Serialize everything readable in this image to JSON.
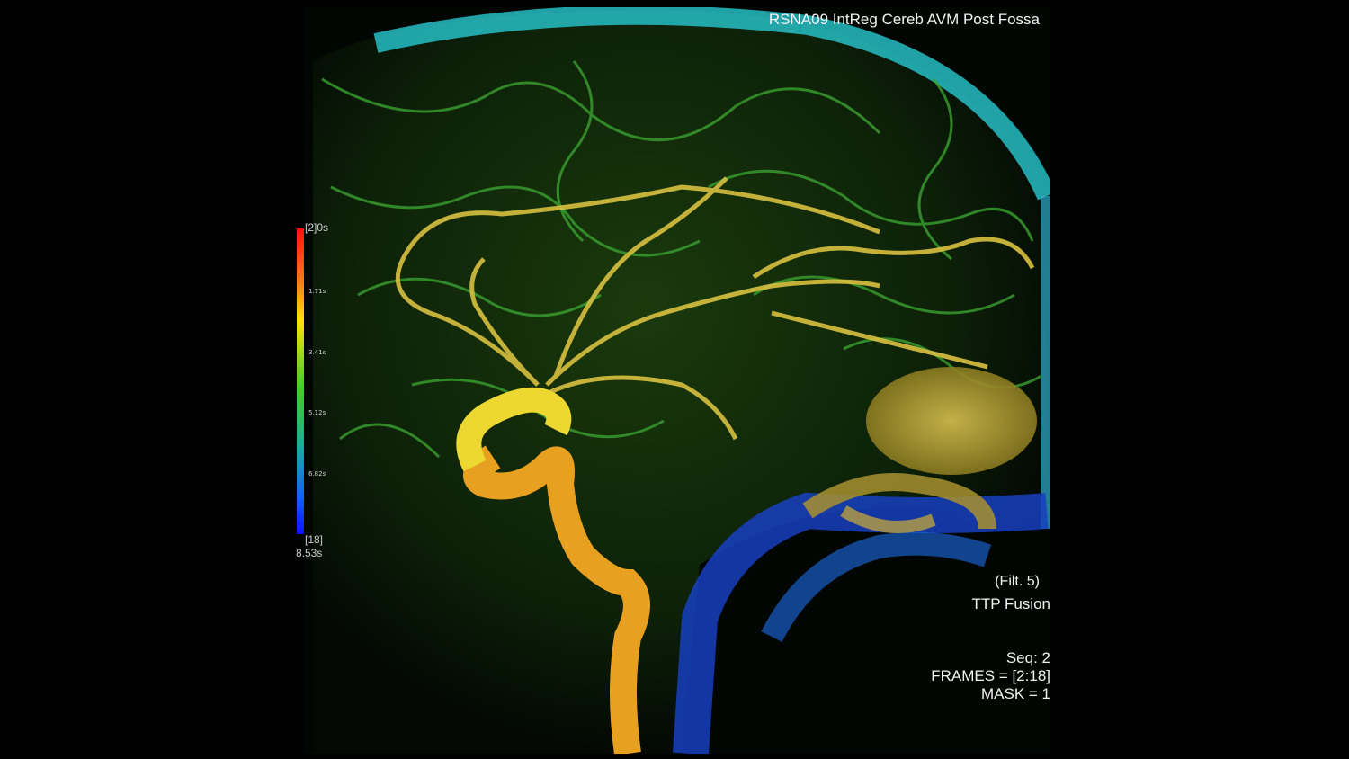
{
  "overlay": {
    "title": "RSNA09 IntReg Cereb AVM Post Fossa",
    "filter": "(Filt. 5)",
    "mode": "TTP Fusion",
    "seq": "Seq: 2",
    "frames": "FRAMES = [2:18]",
    "mask": "MASK =  1"
  },
  "color_scale": {
    "top_label": "[2]",
    "top_unit": "0s",
    "ticks": [
      "1.71s",
      "3.41s",
      "5.12s",
      "6.82s"
    ],
    "bottom_label": "[18]",
    "bottom_value": "8.53s"
  },
  "colors": {
    "background": "#000000",
    "artery": "#e8a020",
    "early": "#e8d040",
    "mid": "#40b030",
    "late": "#20c0d0",
    "vein": "#1040c0"
  }
}
